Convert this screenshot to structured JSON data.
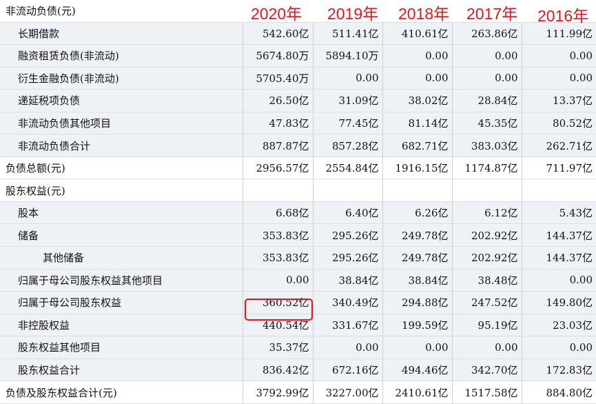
{
  "section_header": "非流动负债(元)",
  "years": [
    "2020年",
    "2019年",
    "2018年",
    "2017年",
    "2016年"
  ],
  "rows": [
    {
      "label": "长期借款",
      "values": [
        "542.60亿",
        "511.41亿",
        "410.61亿",
        "263.86亿",
        "111.99亿"
      ]
    },
    {
      "label": "融资租赁负债(非流动)",
      "values": [
        "5674.80万",
        "5894.10万",
        "0.00",
        "0.00",
        "0.00"
      ]
    },
    {
      "label": "衍生金融负债(非流动)",
      "values": [
        "5705.40万",
        "0.00",
        "0.00",
        "0.00",
        "0.00"
      ]
    },
    {
      "label": "递延税项负债",
      "values": [
        "26.50亿",
        "31.09亿",
        "38.02亿",
        "28.84亿",
        "13.37亿"
      ]
    },
    {
      "label": "非流动负债其他项目",
      "values": [
        "47.83亿",
        "77.45亿",
        "81.14亿",
        "45.35亿",
        "80.52亿"
      ]
    },
    {
      "label": "非流动负债合计",
      "values": [
        "887.87亿",
        "857.28亿",
        "682.71亿",
        "383.03亿",
        "262.71亿"
      ]
    },
    {
      "label": "负债总额(元)",
      "values": [
        "2956.57亿",
        "2554.84亿",
        "1916.15亿",
        "1174.87亿",
        "711.97亿"
      ]
    },
    {
      "label": "股东权益(元)",
      "values": [
        "",
        "",
        "",
        "",
        ""
      ]
    },
    {
      "label": "股本",
      "values": [
        "6.68亿",
        "6.40亿",
        "6.26亿",
        "6.12亿",
        "5.43亿"
      ]
    },
    {
      "label": "储备",
      "values": [
        "353.83亿",
        "295.26亿",
        "249.78亿",
        "202.92亿",
        "144.37亿"
      ]
    },
    {
      "label": "其他储备",
      "values": [
        "353.83亿",
        "295.26亿",
        "249.78亿",
        "202.92亿",
        "144.37亿"
      ]
    },
    {
      "label": "归属于母公司股东权益其他项目",
      "values": [
        "0.00",
        "38.84亿",
        "38.84亿",
        "38.48亿",
        "0.00"
      ]
    },
    {
      "label": "归属于母公司股东权益",
      "values": [
        "360.52亿",
        "340.49亿",
        "294.88亿",
        "247.52亿",
        "149.80亿"
      ]
    },
    {
      "label": "非控股权益",
      "values": [
        "440.54亿",
        "331.67亿",
        "199.59亿",
        "95.19亿",
        "23.03亿"
      ]
    },
    {
      "label": "股东权益其他项目",
      "values": [
        "35.37亿",
        "0.00",
        "0.00",
        "0.00",
        "0.00"
      ]
    },
    {
      "label": "股东权益合计",
      "values": [
        "836.42亿",
        "672.16亿",
        "494.46亿",
        "342.70亿",
        "172.83亿"
      ]
    },
    {
      "label": "负债及股东权益合计(元)",
      "values": [
        "3792.99亿",
        "3227.00亿",
        "2410.61亿",
        "1517.58亿",
        "884.80亿"
      ]
    }
  ],
  "highlight_color": "#e8141a"
}
